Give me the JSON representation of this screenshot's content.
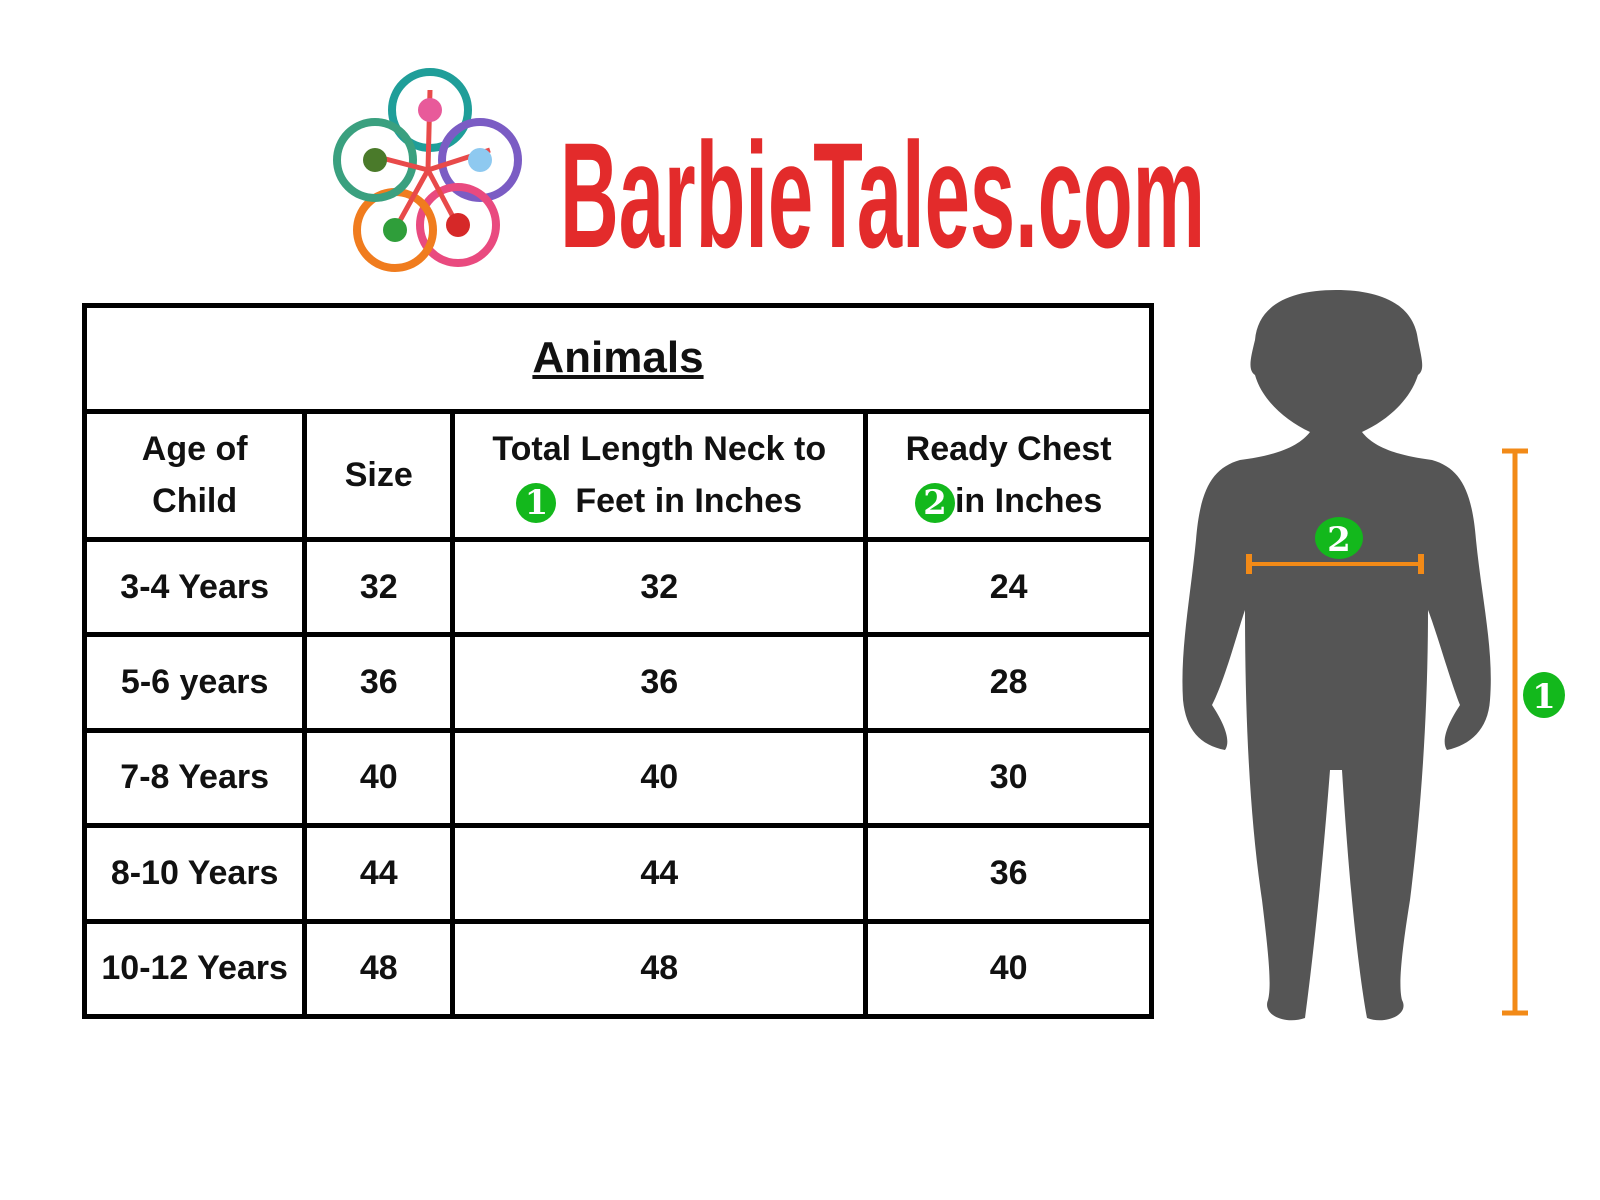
{
  "logo": {
    "text": "BarbieTales.com",
    "brand_color": "#e32b2b",
    "petal_colors": [
      "#1f9e99",
      "#7b5cc4",
      "#e94a7f",
      "#f07c1e",
      "#3aa07f"
    ]
  },
  "table": {
    "title": "Animals",
    "headers": [
      {
        "label_line1": "Age of",
        "label_line2": "Child"
      },
      {
        "label": "Size"
      },
      {
        "label_line1": "Total Length Neck to",
        "label_line2": "Feet in Inches",
        "badge": "1"
      },
      {
        "label_line1": "Ready Chest",
        "label_line2": "in Inches",
        "badge": "2"
      }
    ],
    "rows": [
      [
        "3-4 Years",
        "32",
        "32",
        "24"
      ],
      [
        "5-6 years",
        "36",
        "36",
        "28"
      ],
      [
        "7-8 Years",
        "40",
        "40",
        "30"
      ],
      [
        "8-10 Years",
        "44",
        "44",
        "36"
      ],
      [
        "10-12 Years",
        "48",
        "48",
        "40"
      ]
    ]
  },
  "figure": {
    "chest_badge": "2",
    "length_badge": "1",
    "silhouette_color": "#555555",
    "measure_color": "#f28a17",
    "badge_color": "#13b81c"
  }
}
